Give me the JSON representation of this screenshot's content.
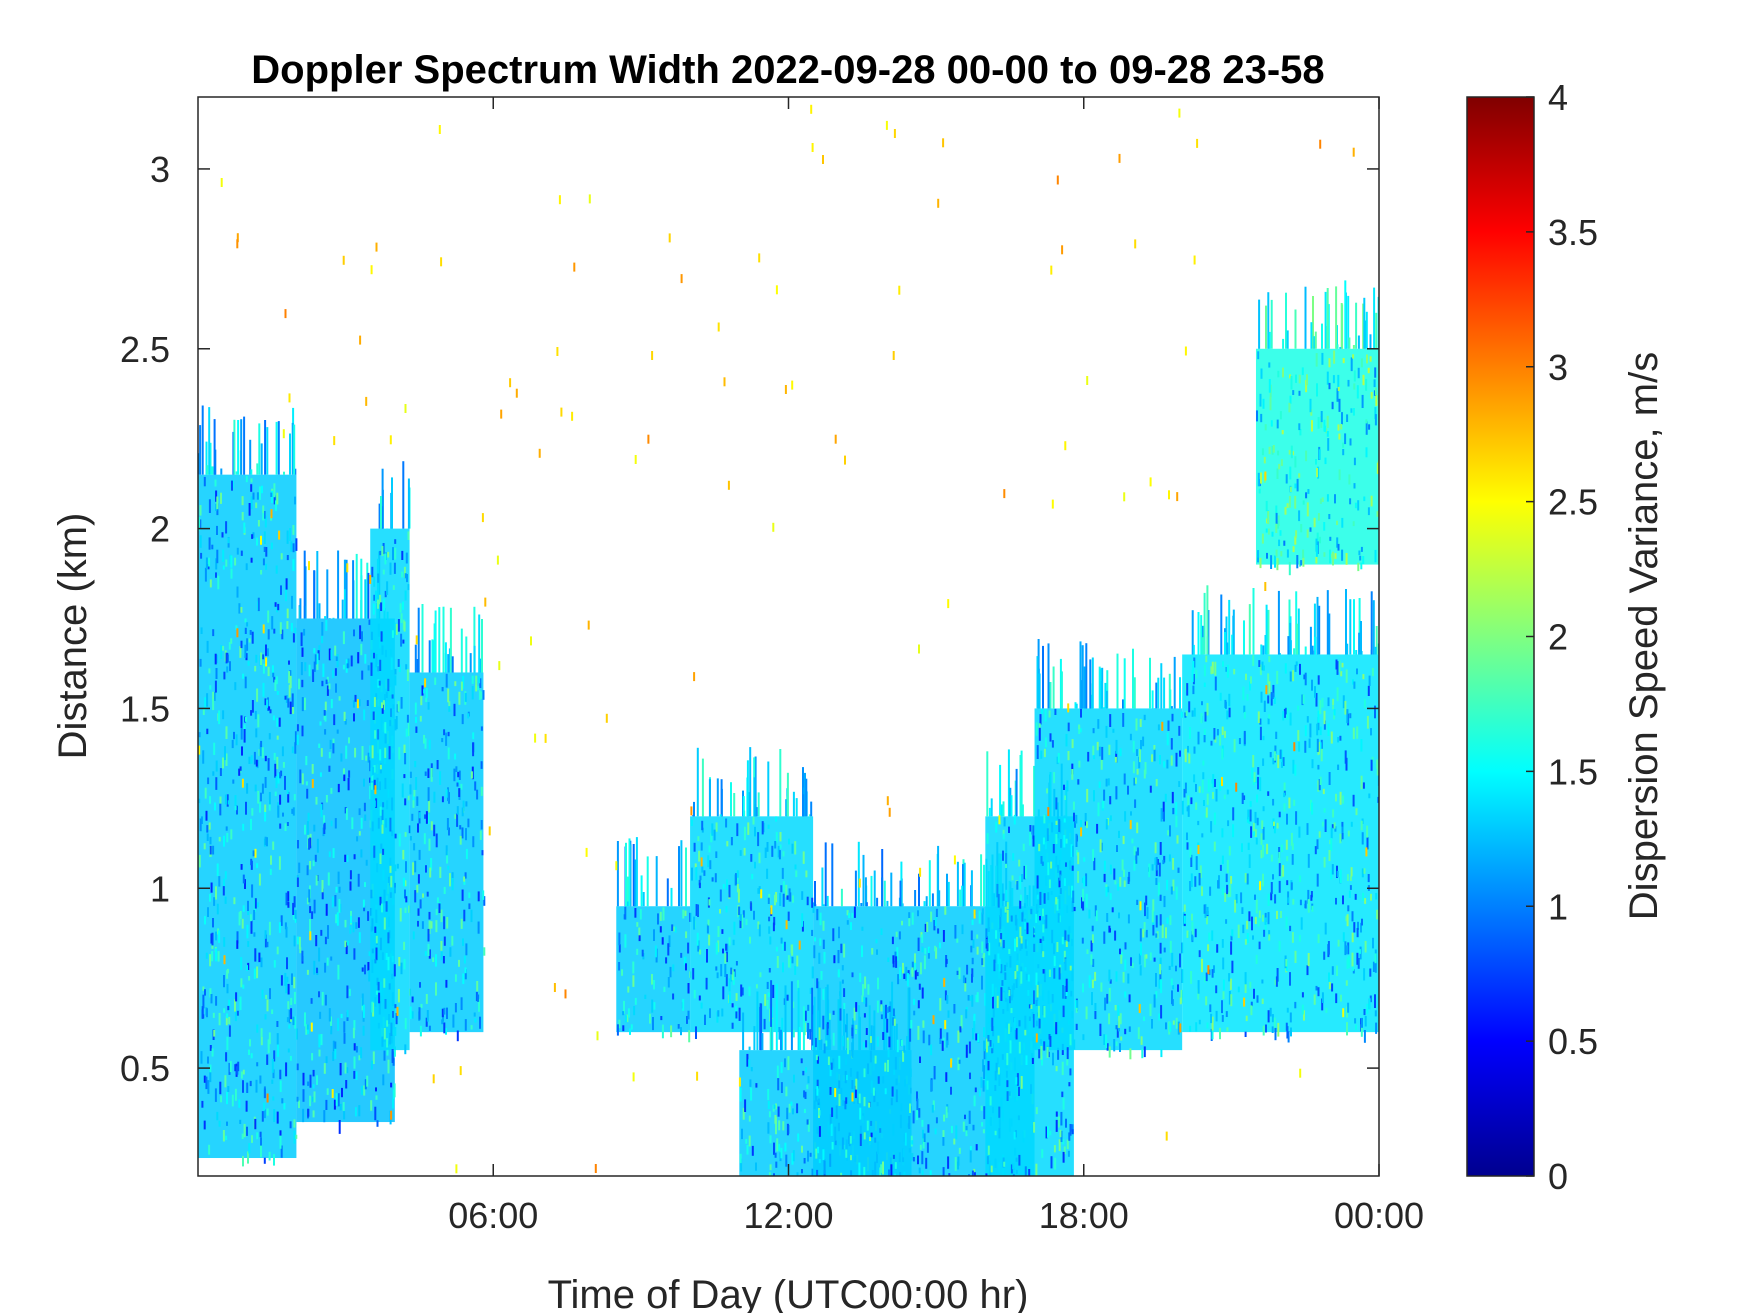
{
  "chart_data": {
    "type": "heatmap",
    "title": "Doppler Spectrum Width 2022-09-28 00-00 to 09-28 23-58",
    "xlabel": "Time of Day (UTC00:00 hr)",
    "ylabel": "Distance (km)",
    "xlim": [
      0,
      24
    ],
    "ylim": [
      0.2,
      3.2
    ],
    "x_ticks": [
      {
        "value": 6,
        "label": "06:00"
      },
      {
        "value": 12,
        "label": "12:00"
      },
      {
        "value": 18,
        "label": "18:00"
      },
      {
        "value": 24,
        "label": "00:00"
      }
    ],
    "y_ticks": [
      {
        "value": 0.5,
        "label": "0.5"
      },
      {
        "value": 1,
        "label": "1"
      },
      {
        "value": 1.5,
        "label": "1.5"
      },
      {
        "value": 2,
        "label": "2"
      },
      {
        "value": 2.5,
        "label": "2.5"
      },
      {
        "value": 3,
        "label": "3"
      }
    ],
    "grid": false,
    "colormap": "jet",
    "colorbar": {
      "label": "Dispersion Speed Variance, m/s",
      "range": [
        0,
        4
      ],
      "ticks": [
        {
          "value": 0,
          "label": "0"
        },
        {
          "value": 0.5,
          "label": "0.5"
        },
        {
          "value": 1,
          "label": "1"
        },
        {
          "value": 1.5,
          "label": "1.5"
        },
        {
          "value": 2,
          "label": "2"
        },
        {
          "value": 2.5,
          "label": "2.5"
        },
        {
          "value": 3,
          "label": "3"
        },
        {
          "value": 3.5,
          "label": "3.5"
        },
        {
          "value": 4,
          "label": "4"
        }
      ],
      "colors": [
        "#00008f",
        "#0000ff",
        "#0080ff",
        "#00ffff",
        "#80ff80",
        "#ffff00",
        "#ff8000",
        "#ff0000",
        "#800000"
      ]
    },
    "typical_value": 1.4,
    "echo_regions": [
      {
        "x_start": 0.0,
        "x_end": 2.0,
        "y_bottom": 0.25,
        "y_top": 2.15,
        "value": 1.3
      },
      {
        "x_start": 2.0,
        "x_end": 4.0,
        "y_bottom": 0.35,
        "y_top": 1.75,
        "value": 1.25
      },
      {
        "x_start": 3.5,
        "x_end": 4.3,
        "y_bottom": 0.55,
        "y_top": 2.0,
        "value": 1.35
      },
      {
        "x_start": 4.3,
        "x_end": 5.8,
        "y_bottom": 0.6,
        "y_top": 1.6,
        "value": 1.3
      },
      {
        "x_start": 8.5,
        "x_end": 10.0,
        "y_bottom": 0.6,
        "y_top": 0.95,
        "value": 1.3
      },
      {
        "x_start": 10.0,
        "x_end": 12.5,
        "y_bottom": 0.6,
        "y_top": 1.2,
        "value": 1.35
      },
      {
        "x_start": 11.0,
        "x_end": 14.5,
        "y_bottom": 0.2,
        "y_top": 0.55,
        "value": 1.3
      },
      {
        "x_start": 12.5,
        "x_end": 17.0,
        "y_bottom": 0.2,
        "y_top": 0.95,
        "value": 1.3
      },
      {
        "x_start": 16.0,
        "x_end": 17.8,
        "y_bottom": 0.2,
        "y_top": 1.2,
        "value": 1.35
      },
      {
        "x_start": 17.0,
        "x_end": 20.0,
        "y_bottom": 0.55,
        "y_top": 1.5,
        "value": 1.35
      },
      {
        "x_start": 20.0,
        "x_end": 24.0,
        "y_bottom": 0.6,
        "y_top": 1.65,
        "value": 1.4
      },
      {
        "x_start": 21.5,
        "x_end": 24.0,
        "y_bottom": 1.9,
        "y_top": 2.5,
        "value": 1.6
      }
    ]
  }
}
